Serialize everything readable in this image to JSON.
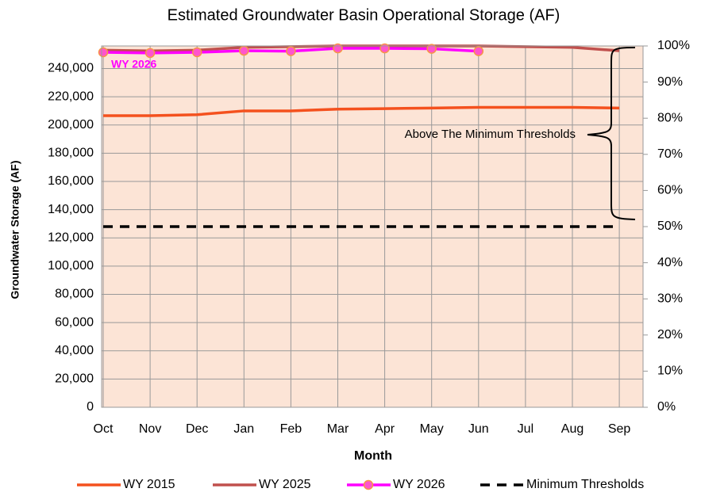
{
  "chart_data": {
    "type": "line",
    "title": "Estimated Groundwater Basin Operational Storage (AF)",
    "xlabel": "Month",
    "ylabel": "Groundwater Storage (AF)",
    "categories": [
      "Oct",
      "Nov",
      "Dec",
      "Jan",
      "Feb",
      "Mar",
      "Apr",
      "May",
      "Jun",
      "Jul",
      "Aug",
      "Sep"
    ],
    "series": [
      {
        "name": "WY 2015",
        "color": "#f4511e",
        "values": [
          206600,
          206600,
          207300,
          210000,
          210000,
          211200,
          211600,
          212000,
          212500,
          212500,
          212500,
          212000
        ]
      },
      {
        "name": "WY 2025",
        "color": "#c0504d",
        "values": [
          253000,
          252500,
          253000,
          255000,
          255500,
          256000,
          256000,
          256000,
          256000,
          255500,
          255000,
          252600
        ]
      },
      {
        "name": "WY 2026",
        "color": "#ff00ff",
        "marker_color": "#ff55cc",
        "values": [
          251500,
          251000,
          251500,
          252600,
          252300,
          254300,
          254300,
          254000,
          252300,
          null,
          null,
          null
        ]
      },
      {
        "name": "Minimum Thresholds",
        "color": "#000000",
        "dashed": true,
        "values": [
          128000,
          128000,
          128000,
          128000,
          128000,
          128000,
          128000,
          128000,
          128000,
          128000,
          128000,
          128000
        ]
      }
    ],
    "ylim": [
      0,
      256000
    ],
    "yticks": [
      0,
      {
        "value": 20000,
        "label": "20,000"
      },
      {
        "value": 40000,
        "label": "40,000"
      },
      {
        "value": 60000,
        "label": "60,000"
      },
      {
        "value": 80000,
        "label": "80,000"
      },
      {
        "value": 100000,
        "label": "100,000"
      },
      {
        "value": 120000,
        "label": "120,000"
      },
      {
        "value": 140000,
        "label": "140,000"
      },
      {
        "value": 160000,
        "label": "160,000"
      },
      {
        "value": 180000,
        "label": "180,000"
      },
      {
        "value": 200000,
        "label": "200,000"
      },
      {
        "value": 220000,
        "label": "220,000"
      },
      {
        "value": 240000,
        "label": "240,000"
      }
    ],
    "y2lim": [
      0,
      100
    ],
    "y2ticks": [
      {
        "value": 0,
        "label": "0%"
      },
      {
        "value": 10,
        "label": "10%"
      },
      {
        "value": 20,
        "label": "20%"
      },
      {
        "value": 30,
        "label": "30%"
      },
      {
        "value": 40,
        "label": "40%"
      },
      {
        "value": 50,
        "label": "50%"
      },
      {
        "value": 60,
        "label": "60%"
      },
      {
        "value": 70,
        "label": "70%"
      },
      {
        "value": 80,
        "label": "80%"
      },
      {
        "value": 90,
        "label": "90%"
      },
      {
        "value": 100,
        "label": "100%"
      }
    ],
    "grid": true,
    "annotations": [
      "WY 2026",
      "Above The Minimum Thresholds"
    ]
  }
}
